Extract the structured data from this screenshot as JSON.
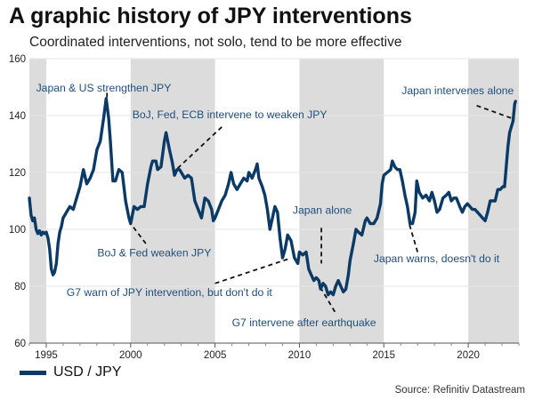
{
  "title": "A graphic history of JPY interventions",
  "subtitle": "Coordinated interventions, not solo, tend to be more effective",
  "legend_label": "USD / JPY",
  "source": "Source: Refinitiv Datastream",
  "colors": {
    "line": "#0b3a66",
    "shade": "#dcdcdc",
    "annotation": "#1d4e7e",
    "grid": "#e6e6e6"
  },
  "chart_data": {
    "type": "line",
    "title": "A graphic history of JPY interventions",
    "subtitle": "Coordinated interventions, not solo, tend to be more effective",
    "xlabel": "",
    "ylabel": "",
    "xlim": [
      1994,
      2023
    ],
    "ylim": [
      60,
      160
    ],
    "x_ticks": [
      1995,
      2000,
      2005,
      2010,
      2015,
      2020
    ],
    "y_ticks": [
      60,
      80,
      100,
      120,
      140,
      160
    ],
    "grid": "horizontal",
    "legend": "bottom-left",
    "shaded_periods": [
      [
        1994,
        1995
      ],
      [
        2000,
        2005
      ],
      [
        2010,
        2015
      ],
      [
        2020,
        2023
      ]
    ],
    "series": [
      {
        "name": "USD / JPY",
        "points": [
          [
            1994.0,
            111
          ],
          [
            1994.1,
            105
          ],
          [
            1994.2,
            103
          ],
          [
            1994.3,
            104
          ],
          [
            1994.4,
            100
          ],
          [
            1994.5,
            98.5
          ],
          [
            1994.6,
            99.5
          ],
          [
            1994.7,
            98
          ],
          [
            1994.8,
            99
          ],
          [
            1994.9,
            98.5
          ],
          [
            1995.0,
            99
          ],
          [
            1995.1,
            97
          ],
          [
            1995.2,
            93
          ],
          [
            1995.3,
            86
          ],
          [
            1995.4,
            84
          ],
          [
            1995.5,
            85
          ],
          [
            1995.6,
            88
          ],
          [
            1995.7,
            95
          ],
          [
            1995.8,
            99
          ],
          [
            1995.9,
            101
          ],
          [
            1996.0,
            104
          ],
          [
            1996.2,
            106
          ],
          [
            1996.4,
            108
          ],
          [
            1996.6,
            107
          ],
          [
            1996.8,
            111
          ],
          [
            1997.0,
            115
          ],
          [
            1997.2,
            121
          ],
          [
            1997.4,
            116
          ],
          [
            1997.6,
            118
          ],
          [
            1997.8,
            121
          ],
          [
            1998.0,
            128
          ],
          [
            1998.2,
            131
          ],
          [
            1998.4,
            139
          ],
          [
            1998.55,
            146
          ],
          [
            1998.7,
            139
          ],
          [
            1998.8,
            131
          ],
          [
            1998.95,
            117
          ],
          [
            1999.1,
            117
          ],
          [
            1999.3,
            121
          ],
          [
            1999.5,
            120
          ],
          [
            1999.7,
            110
          ],
          [
            1999.9,
            104
          ],
          [
            2000.0,
            102
          ],
          [
            2000.2,
            108
          ],
          [
            2000.4,
            107
          ],
          [
            2000.6,
            108
          ],
          [
            2000.8,
            108
          ],
          [
            2000.9,
            112
          ],
          [
            2001.0,
            116
          ],
          [
            2001.2,
            122
          ],
          [
            2001.3,
            124
          ],
          [
            2001.5,
            124
          ],
          [
            2001.6,
            121
          ],
          [
            2001.8,
            122
          ],
          [
            2002.0,
            131
          ],
          [
            2002.1,
            134
          ],
          [
            2002.3,
            128
          ],
          [
            2002.45,
            124
          ],
          [
            2002.6,
            119
          ],
          [
            2002.75,
            121
          ],
          [
            2002.9,
            121
          ],
          [
            2003.0,
            120
          ],
          [
            2003.2,
            118
          ],
          [
            2003.4,
            119
          ],
          [
            2003.6,
            118
          ],
          [
            2003.8,
            110
          ],
          [
            2004.0,
            107
          ],
          [
            2004.2,
            104
          ],
          [
            2004.4,
            111
          ],
          [
            2004.6,
            110
          ],
          [
            2004.8,
            107
          ],
          [
            2004.9,
            103
          ],
          [
            2005.0,
            104
          ],
          [
            2005.2,
            107
          ],
          [
            2005.4,
            110
          ],
          [
            2005.6,
            112
          ],
          [
            2005.8,
            116
          ],
          [
            2005.95,
            120
          ],
          [
            2006.1,
            116
          ],
          [
            2006.3,
            114
          ],
          [
            2006.5,
            116
          ],
          [
            2006.7,
            118
          ],
          [
            2006.9,
            117
          ],
          [
            2007.0,
            120
          ],
          [
            2007.2,
            118
          ],
          [
            2007.4,
            121
          ],
          [
            2007.5,
            123
          ],
          [
            2007.6,
            118
          ],
          [
            2007.8,
            115
          ],
          [
            2007.95,
            112
          ],
          [
            2008.1,
            107
          ],
          [
            2008.25,
            100
          ],
          [
            2008.4,
            104
          ],
          [
            2008.55,
            108
          ],
          [
            2008.7,
            106
          ],
          [
            2008.85,
            97
          ],
          [
            2009.0,
            90
          ],
          [
            2009.15,
            93
          ],
          [
            2009.3,
            98
          ],
          [
            2009.5,
            96
          ],
          [
            2009.7,
            90
          ],
          [
            2009.9,
            88
          ],
          [
            2010.0,
            92
          ],
          [
            2010.2,
            91
          ],
          [
            2010.4,
            92
          ],
          [
            2010.55,
            86
          ],
          [
            2010.7,
            84
          ],
          [
            2010.85,
            82
          ],
          [
            2011.0,
            83
          ],
          [
            2011.15,
            82
          ],
          [
            2011.25,
            79
          ],
          [
            2011.4,
            81
          ],
          [
            2011.55,
            80
          ],
          [
            2011.7,
            77
          ],
          [
            2011.85,
            78
          ],
          [
            2012.0,
            77
          ],
          [
            2012.15,
            80
          ],
          [
            2012.3,
            82
          ],
          [
            2012.45,
            80
          ],
          [
            2012.6,
            78
          ],
          [
            2012.75,
            79
          ],
          [
            2012.9,
            84
          ],
          [
            2013.0,
            89
          ],
          [
            2013.2,
            95
          ],
          [
            2013.35,
            100
          ],
          [
            2013.5,
            99
          ],
          [
            2013.7,
            98
          ],
          [
            2013.9,
            103
          ],
          [
            2014.0,
            104
          ],
          [
            2014.2,
            102
          ],
          [
            2014.4,
            102
          ],
          [
            2014.6,
            104
          ],
          [
            2014.8,
            109
          ],
          [
            2014.9,
            116
          ],
          [
            2015.0,
            119
          ],
          [
            2015.2,
            120
          ],
          [
            2015.4,
            121
          ],
          [
            2015.5,
            124
          ],
          [
            2015.65,
            122
          ],
          [
            2015.8,
            121
          ],
          [
            2015.95,
            121
          ],
          [
            2016.1,
            117
          ],
          [
            2016.25,
            112
          ],
          [
            2016.4,
            108
          ],
          [
            2016.55,
            102
          ],
          [
            2016.7,
            102
          ],
          [
            2016.85,
            106
          ],
          [
            2016.95,
            117
          ],
          [
            2017.1,
            113
          ],
          [
            2017.3,
            111
          ],
          [
            2017.5,
            112
          ],
          [
            2017.7,
            110
          ],
          [
            2017.85,
            113
          ],
          [
            2018.0,
            110
          ],
          [
            2018.15,
            106
          ],
          [
            2018.3,
            107
          ],
          [
            2018.5,
            111
          ],
          [
            2018.7,
            112
          ],
          [
            2018.85,
            113
          ],
          [
            2019.0,
            110
          ],
          [
            2019.15,
            111
          ],
          [
            2019.3,
            111
          ],
          [
            2019.5,
            108
          ],
          [
            2019.65,
            106
          ],
          [
            2019.8,
            108
          ],
          [
            2019.95,
            109
          ],
          [
            2020.1,
            108
          ],
          [
            2020.25,
            107
          ],
          [
            2020.4,
            107
          ],
          [
            2020.55,
            106
          ],
          [
            2020.7,
            105
          ],
          [
            2020.85,
            104
          ],
          [
            2021.0,
            103
          ],
          [
            2021.15,
            106
          ],
          [
            2021.3,
            110
          ],
          [
            2021.45,
            110
          ],
          [
            2021.6,
            110
          ],
          [
            2021.75,
            114
          ],
          [
            2021.9,
            114
          ],
          [
            2022.05,
            115
          ],
          [
            2022.15,
            115
          ],
          [
            2022.25,
            122
          ],
          [
            2022.35,
            129
          ],
          [
            2022.45,
            134
          ],
          [
            2022.55,
            136
          ],
          [
            2022.65,
            138
          ],
          [
            2022.75,
            144
          ],
          [
            2022.8,
            145
          ]
        ]
      }
    ],
    "annotations": [
      {
        "text": "Japan & US strengthen JPY",
        "anchor": "start",
        "label_at": [
          1994.4,
          148.5
        ],
        "from": [
          1998.6,
          148
        ],
        "to": [
          1998.6,
          146
        ]
      },
      {
        "text": "BoJ, Fed, ECB intervene to weaken JPY",
        "anchor": "start",
        "label_at": [
          2000.1,
          139
        ],
        "from": [
          2005.4,
          136
        ],
        "to": [
          2002.7,
          121
        ]
      },
      {
        "text": "Japan alone",
        "anchor": "start",
        "label_at": [
          2009.6,
          105.5
        ],
        "from": [
          2011.3,
          100.5
        ],
        "to": [
          2011.3,
          88
        ]
      },
      {
        "text": "Japan intervenes alone",
        "anchor": "end",
        "label_at": [
          2022.7,
          147.5
        ],
        "from": [
          2020.5,
          143.5
        ],
        "to": [
          2022.6,
          139
        ]
      },
      {
        "text": "BoJ & Fed weaken JPY",
        "anchor": "middle",
        "label_at": [
          2001.4,
          90.5
        ],
        "from": [
          2000.9,
          95
        ],
        "to": [
          2000.0,
          102
        ]
      },
      {
        "text": "G7 warn of JPY intervention, but don't do it",
        "anchor": "start",
        "label_at": [
          1996.2,
          76.5
        ],
        "from": [
          2005.0,
          81
        ],
        "to": [
          2009.3,
          89.5
        ]
      },
      {
        "text": "G7 intervene after earthquake",
        "anchor": "start",
        "label_at": [
          2006.0,
          66
        ],
        "from": [
          2012.1,
          71
        ],
        "to": [
          2011.3,
          79
        ]
      },
      {
        "text": "Japan warns, doesn't do it",
        "anchor": "start",
        "label_at": [
          2014.4,
          88.5
        ],
        "from": [
          2017.0,
          92
        ],
        "to": [
          2016.5,
          102
        ]
      }
    ]
  }
}
